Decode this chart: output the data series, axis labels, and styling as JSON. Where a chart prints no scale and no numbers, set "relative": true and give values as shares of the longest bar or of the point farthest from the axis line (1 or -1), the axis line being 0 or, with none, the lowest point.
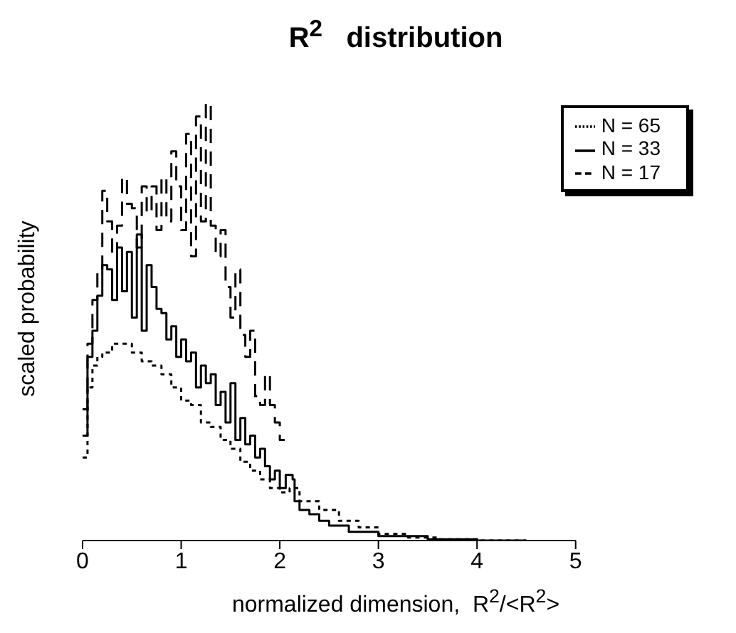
{
  "chart_data": {
    "type": "step",
    "title": "R$^{2}$   distribution",
    "xlabel": "normalized dimension,  R$^{2}$/<R$^{2}$>",
    "ylabel": "scaled probability",
    "relative": true,
    "xlim": [
      0,
      5
    ],
    "xticks": [
      0,
      1,
      2,
      3,
      4,
      5
    ],
    "legend": "top right",
    "marker": "none",
    "series": [
      {
        "name": "N = 65",
        "color": "#000000",
        "line_style": "dotted",
        "x": [
          0,
          0.05,
          0.1,
          0.15,
          0.2,
          0.3,
          0.4,
          0.5,
          0.6,
          0.7,
          0.8,
          0.9,
          1.0,
          1.1,
          1.2,
          1.3,
          1.4,
          1.5,
          1.6,
          1.7,
          1.8,
          1.9,
          2.0,
          2.1,
          2.2,
          2.4,
          2.6,
          2.8,
          3.0,
          3.3,
          3.6,
          4.0,
          4.5
        ],
        "values": [
          0.19,
          0.35,
          0.4,
          0.42,
          0.43,
          0.45,
          0.45,
          0.43,
          0.41,
          0.4,
          0.38,
          0.35,
          0.32,
          0.31,
          0.27,
          0.26,
          0.23,
          0.21,
          0.18,
          0.16,
          0.14,
          0.12,
          0.11,
          0.12,
          0.09,
          0.07,
          0.045,
          0.03,
          0.015,
          0.007,
          0.003,
          0,
          0
        ]
      },
      {
        "name": "N = 33",
        "color": "#000000",
        "line_style": "solid",
        "x": [
          0,
          0.05,
          0.1,
          0.15,
          0.2,
          0.25,
          0.3,
          0.35,
          0.4,
          0.45,
          0.5,
          0.55,
          0.6,
          0.65,
          0.7,
          0.75,
          0.8,
          0.85,
          0.9,
          0.95,
          1.0,
          1.05,
          1.1,
          1.15,
          1.2,
          1.25,
          1.3,
          1.35,
          1.4,
          1.45,
          1.5,
          1.55,
          1.6,
          1.65,
          1.7,
          1.75,
          1.8,
          1.85,
          1.9,
          1.95,
          2.0,
          2.06,
          2.13,
          2.15,
          2.2,
          2.3,
          2.4,
          2.5,
          2.7,
          3.0,
          3.5,
          4.0,
          4.5
        ],
        "values": [
          0.24,
          0.42,
          0.48,
          0.56,
          0.63,
          0.62,
          0.55,
          0.67,
          0.57,
          0.66,
          0.51,
          0.7,
          0.48,
          0.63,
          0.58,
          0.53,
          0.52,
          0.46,
          0.49,
          0.42,
          0.46,
          0.41,
          0.43,
          0.35,
          0.4,
          0.36,
          0.38,
          0.31,
          0.34,
          0.27,
          0.36,
          0.23,
          0.28,
          0.22,
          0.24,
          0.19,
          0.21,
          0.17,
          0.14,
          0.16,
          0.12,
          0.15,
          0.14,
          0.09,
          0.07,
          0.06,
          0.045,
          0.034,
          0.02,
          0.01,
          0.003,
          0,
          0
        ]
      },
      {
        "name": "N = 17",
        "color": "#000000",
        "line_style": "dashed",
        "x": [
          0,
          0.05,
          0.1,
          0.15,
          0.2,
          0.25,
          0.3,
          0.35,
          0.4,
          0.45,
          0.5,
          0.55,
          0.6,
          0.65,
          0.7,
          0.75,
          0.8,
          0.85,
          0.9,
          0.95,
          1.0,
          1.05,
          1.1,
          1.15,
          1.2,
          1.25,
          1.3,
          1.35,
          1.4,
          1.45,
          1.5,
          1.55,
          1.6,
          1.65,
          1.7,
          1.75,
          1.8,
          1.85,
          1.9,
          1.95,
          2.0,
          2.05
        ],
        "values": [
          0.3,
          0.45,
          0.55,
          0.62,
          0.8,
          0.73,
          0.65,
          0.72,
          0.83,
          0.77,
          0.76,
          0.67,
          0.81,
          0.75,
          0.81,
          0.71,
          0.83,
          0.73,
          0.89,
          0.81,
          0.71,
          0.93,
          0.65,
          0.97,
          0.73,
          1.0,
          0.72,
          0.65,
          0.71,
          0.58,
          0.51,
          0.62,
          0.47,
          0.42,
          0.48,
          0.33,
          0.31,
          0.38,
          0.31,
          0.27,
          0.23,
          0.23
        ]
      }
    ]
  }
}
